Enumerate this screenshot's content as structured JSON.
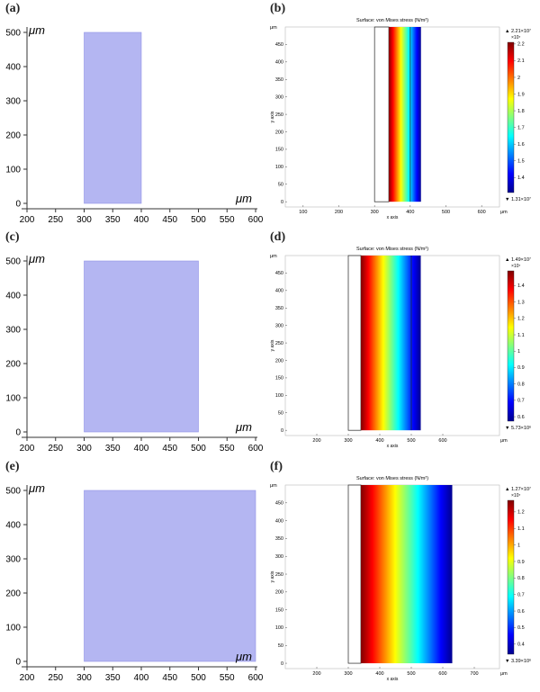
{
  "figure": {
    "panel_labels": [
      "(a)",
      "(b)",
      "(c)",
      "(d)",
      "(e)",
      "(f)"
    ]
  },
  "chart_data": [
    {
      "id": "a",
      "type": "area",
      "unit_y": "μm",
      "unit_x": "μm",
      "x_ticks": [
        "200",
        "250",
        "300",
        "350",
        "400",
        "450",
        "500",
        "550",
        "600"
      ],
      "y_ticks": [
        "0",
        "100",
        "200",
        "300",
        "400",
        "500"
      ],
      "xlim": [
        200,
        600
      ],
      "ylim": [
        0,
        500
      ],
      "rect": {
        "x0": 300,
        "x1": 400,
        "y0": 0,
        "y1": 500
      },
      "fill_color": "#b4b6f2"
    },
    {
      "id": "b",
      "type": "heatmap",
      "title": "Surface: von Mises stress (N/m²)",
      "ylabel": "y axis",
      "xlabel": "x axis",
      "unit_y": "μm",
      "unit_x": "μm",
      "x_ticks": [
        "100",
        "200",
        "300",
        "400",
        "500",
        "600"
      ],
      "y_ticks": [
        "0",
        "50",
        "100",
        "150",
        "200",
        "250",
        "300",
        "350",
        "400",
        "450"
      ],
      "xlim": [
        50,
        650
      ],
      "ylim": [
        -15,
        500
      ],
      "outline": {
        "x0": 300,
        "x1": 340,
        "y0": 0,
        "y1": 500
      },
      "gradient": {
        "x0": 340,
        "x1": 430,
        "y0": 0,
        "y1": 500
      },
      "inner_line_x": 400,
      "colorbar": {
        "max_label": "▲ 2.21×10⁷",
        "min_label": "▼ 1.31×10⁷",
        "exponent": "×10⁷",
        "ticks": [
          "2.2",
          "2.1",
          "2",
          "1.9",
          "1.8",
          "1.7",
          "1.6",
          "1.5",
          "1.4"
        ],
        "min": 1.31,
        "max": 2.21,
        "tick_values": [
          2.2,
          2.1,
          2,
          1.9,
          1.8,
          1.7,
          1.6,
          1.5,
          1.4
        ]
      }
    },
    {
      "id": "c",
      "type": "area",
      "unit_y": "μm",
      "unit_x": "μm",
      "x_ticks": [
        "200",
        "250",
        "300",
        "350",
        "400",
        "450",
        "500",
        "550",
        "600"
      ],
      "y_ticks": [
        "0",
        "100",
        "200",
        "300",
        "400",
        "500"
      ],
      "xlim": [
        200,
        600
      ],
      "ylim": [
        0,
        500
      ],
      "rect": {
        "x0": 300,
        "x1": 500,
        "y0": 0,
        "y1": 500
      },
      "fill_color": "#b4b6f2"
    },
    {
      "id": "d",
      "type": "heatmap",
      "title": "Surface: von Mises stress (N/m²)",
      "ylabel": "y axis",
      "xlabel": "x axis",
      "unit_y": "μm",
      "unit_x": "μm",
      "x_ticks": [
        "200",
        "300",
        "400",
        "500",
        "600"
      ],
      "y_ticks": [
        "0",
        "50",
        "100",
        "150",
        "200",
        "250",
        "300",
        "350",
        "400",
        "450"
      ],
      "xlim": [
        100,
        780
      ],
      "ylim": [
        -15,
        500
      ],
      "outline": {
        "x0": 300,
        "x1": 340,
        "y0": 0,
        "y1": 500
      },
      "gradient": {
        "x0": 340,
        "x1": 530,
        "y0": 0,
        "y1": 500
      },
      "inner_line_x": 500,
      "colorbar": {
        "max_label": "▲ 1.49×10⁷",
        "min_label": "▼ 5.73×10⁶",
        "exponent": "×10⁷",
        "ticks": [
          "1.4",
          "1.3",
          "1.2",
          "1.1",
          "1",
          "0.9",
          "0.8",
          "0.7",
          "0.6"
        ],
        "min": 0.573,
        "max": 1.49,
        "tick_values": [
          1.4,
          1.3,
          1.2,
          1.1,
          1,
          0.9,
          0.8,
          0.7,
          0.6
        ]
      }
    },
    {
      "id": "e",
      "type": "area",
      "unit_y": "μm",
      "unit_x": "μm",
      "x_ticks": [
        "200",
        "250",
        "300",
        "350",
        "400",
        "450",
        "500",
        "550",
        "600"
      ],
      "y_ticks": [
        "0",
        "100",
        "200",
        "300",
        "400",
        "500"
      ],
      "xlim": [
        200,
        600
      ],
      "ylim": [
        0,
        500
      ],
      "rect": {
        "x0": 300,
        "x1": 600,
        "y0": 0,
        "y1": 500
      },
      "fill_color": "#b4b6f2"
    },
    {
      "id": "f",
      "type": "heatmap",
      "title": "Surface: von Mises stress (N/m²)",
      "ylabel": "y axis",
      "xlabel": "x axis",
      "unit_y": "μm",
      "unit_x": "μm",
      "x_ticks": [
        "200",
        "300",
        "400",
        "500",
        "600",
        "700"
      ],
      "y_ticks": [
        "0",
        "50",
        "100",
        "150",
        "200",
        "250",
        "300",
        "350",
        "400",
        "450"
      ],
      "xlim": [
        100,
        780
      ],
      "ylim": [
        -15,
        500
      ],
      "outline": {
        "x0": 300,
        "x1": 340,
        "y0": 0,
        "y1": 500
      },
      "gradient": {
        "x0": 340,
        "x1": 630,
        "y0": 0,
        "y1": 500
      },
      "inner_line_x": null,
      "colorbar": {
        "max_label": "▲ 1.27×10⁷",
        "min_label": "▼ 3.39×10⁶",
        "exponent": "×10⁷",
        "ticks": [
          "1.2",
          "1.1",
          "1",
          "0.9",
          "0.8",
          "0.7",
          "0.6",
          "0.5",
          "0.4"
        ],
        "min": 0.339,
        "max": 1.27,
        "tick_values": [
          1.2,
          1.1,
          1,
          0.9,
          0.8,
          0.7,
          0.6,
          0.5,
          0.4
        ]
      }
    }
  ]
}
